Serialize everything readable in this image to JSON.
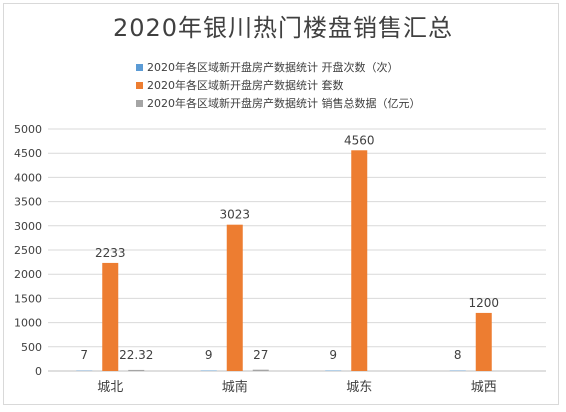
{
  "chart_data": {
    "type": "bar",
    "title": "2020年银川热门楼盘销售汇总",
    "categories": [
      "城北",
      "城南",
      "城东",
      "城西"
    ],
    "series": [
      {
        "name": "2020年各区域新开盘房产数据统计 开盘次数（次）",
        "color": "#5b9bd5",
        "values": [
          7,
          9,
          9,
          8
        ],
        "labels": [
          "7",
          "9",
          "9",
          "8"
        ]
      },
      {
        "name": "2020年各区域新开盘房产数据统计 套数",
        "color": "#ed7d31",
        "values": [
          2233,
          3023,
          4560,
          1200
        ],
        "labels": [
          "2233",
          "3023",
          "4560",
          "1200"
        ]
      },
      {
        "name": "2020年各区域新开盘房产数据统计 销售总数据（亿元）",
        "color": "#a5a5a5",
        "values": [
          22.32,
          27,
          null,
          null
        ],
        "labels": [
          "22.32",
          "27",
          "",
          ""
        ]
      }
    ],
    "yticks": [
      "0",
      "500",
      "1000",
      "1500",
      "2000",
      "2500",
      "3000",
      "3500",
      "4000",
      "4500",
      "5000"
    ],
    "ylim": [
      0,
      5000
    ],
    "grid": true,
    "legend_position": "top"
  }
}
